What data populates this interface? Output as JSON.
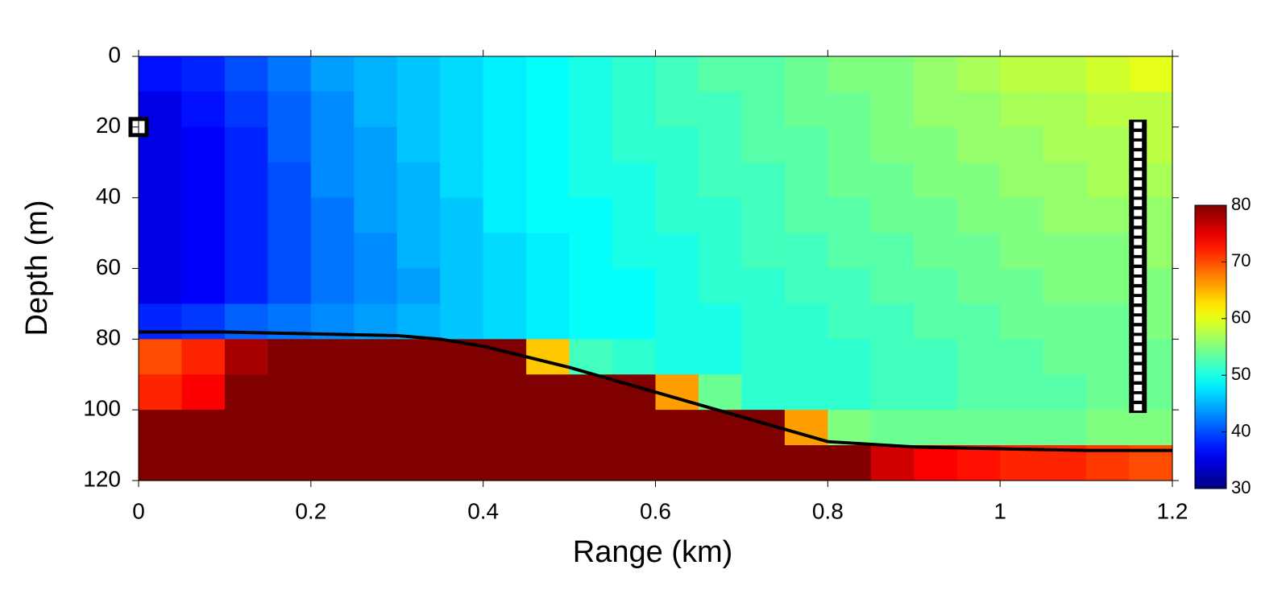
{
  "chart_data": {
    "type": "heatmap",
    "xlabel": "Range (km)",
    "ylabel": "Depth (m)",
    "xlim": [
      0,
      1.2
    ],
    "ylim": [
      0,
      120
    ],
    "y_inverted": true,
    "xticks": [
      0,
      0.2,
      0.4,
      0.6,
      0.8,
      1,
      1.2
    ],
    "yticks": [
      0,
      20,
      40,
      60,
      80,
      100,
      120
    ],
    "colormap": "jet",
    "clim": [
      30,
      80
    ],
    "cticks": [
      30,
      40,
      50,
      60,
      70,
      80
    ],
    "x": [
      0.025,
      0.075,
      0.125,
      0.175,
      0.225,
      0.275,
      0.325,
      0.375,
      0.425,
      0.475,
      0.525,
      0.575,
      0.625,
      0.675,
      0.725,
      0.775,
      0.825,
      0.875,
      0.925,
      0.975,
      1.025,
      1.075,
      1.125,
      1.175
    ],
    "y": [
      5,
      15,
      25,
      35,
      45,
      55,
      65,
      75,
      85,
      95,
      105,
      115
    ],
    "z": [
      [
        37,
        38,
        40,
        42,
        44,
        45,
        46,
        47,
        48,
        49,
        50,
        51,
        52,
        53,
        53,
        54,
        55,
        55,
        56,
        57,
        58,
        58,
        59,
        60
      ],
      [
        35,
        37,
        39,
        41,
        43,
        45,
        46,
        47,
        48,
        49,
        50,
        51,
        52,
        52,
        53,
        54,
        54,
        55,
        56,
        56,
        57,
        57,
        58,
        58
      ],
      [
        35,
        36,
        38,
        41,
        43,
        44,
        46,
        47,
        48,
        49,
        50,
        51,
        51,
        52,
        53,
        53,
        54,
        55,
        55,
        56,
        56,
        57,
        57,
        58
      ],
      [
        35,
        36,
        38,
        40,
        43,
        44,
        45,
        47,
        48,
        49,
        50,
        50,
        51,
        52,
        52,
        53,
        54,
        54,
        55,
        55,
        56,
        56,
        57,
        57
      ],
      [
        35,
        36,
        38,
        40,
        42,
        44,
        45,
        46,
        48,
        49,
        49,
        50,
        51,
        51,
        52,
        53,
        53,
        54,
        54,
        55,
        55,
        56,
        56,
        56
      ],
      [
        35,
        36,
        38,
        40,
        42,
        43,
        45,
        46,
        47,
        48,
        49,
        50,
        50,
        51,
        52,
        52,
        53,
        53,
        54,
        54,
        55,
        55,
        55,
        56
      ],
      [
        35,
        36,
        38,
        40,
        42,
        43,
        44,
        46,
        47,
        48,
        49,
        49,
        50,
        51,
        51,
        52,
        52,
        53,
        53,
        54,
        54,
        55,
        55,
        55
      ],
      [
        38,
        39,
        41,
        42,
        43,
        44,
        45,
        46,
        47,
        48,
        49,
        49,
        50,
        50,
        51,
        51,
        52,
        52,
        53,
        53,
        54,
        54,
        54,
        55
      ],
      [
        70,
        72,
        78,
        80,
        80,
        80,
        80,
        80,
        80,
        64,
        52,
        51,
        50,
        50,
        51,
        51,
        51,
        52,
        52,
        53,
        53,
        54,
        54,
        54
      ],
      [
        72,
        74,
        80,
        80,
        80,
        80,
        80,
        80,
        80,
        80,
        80,
        80,
        66,
        54,
        51,
        51,
        51,
        52,
        52,
        53,
        53,
        53,
        54,
        54
      ],
      [
        80,
        80,
        80,
        80,
        80,
        80,
        80,
        80,
        80,
        80,
        80,
        80,
        80,
        80,
        80,
        66,
        55,
        54,
        54,
        54,
        54,
        54,
        55,
        55
      ],
      [
        80,
        80,
        80,
        80,
        80,
        80,
        80,
        80,
        80,
        80,
        80,
        80,
        80,
        80,
        80,
        80,
        80,
        76,
        74,
        73,
        72,
        72,
        71,
        70
      ]
    ],
    "bathymetry": {
      "x": [
        0,
        0.1,
        0.2,
        0.3,
        0.35,
        0.4,
        0.5,
        0.6,
        0.7,
        0.8,
        0.9,
        1.0,
        1.1,
        1.2
      ],
      "y": [
        78,
        78,
        78.5,
        79,
        80,
        82,
        88,
        95,
        102,
        109,
        110.5,
        111,
        111.5,
        111.5
      ]
    },
    "source": {
      "x": 0,
      "y": 20
    },
    "receivers": {
      "x": 1.16,
      "y": [
        19.5,
        22.3,
        25,
        27.8,
        30.5,
        33.3,
        36,
        38.8,
        41.5,
        44.3,
        47,
        49.8,
        52.5,
        55.3,
        58,
        60.8,
        63.5,
        66.3,
        69,
        71.8,
        74.5,
        77.3,
        80,
        82.8,
        85.5,
        88.3,
        91,
        93.8,
        96.5,
        99.3
      ]
    }
  }
}
